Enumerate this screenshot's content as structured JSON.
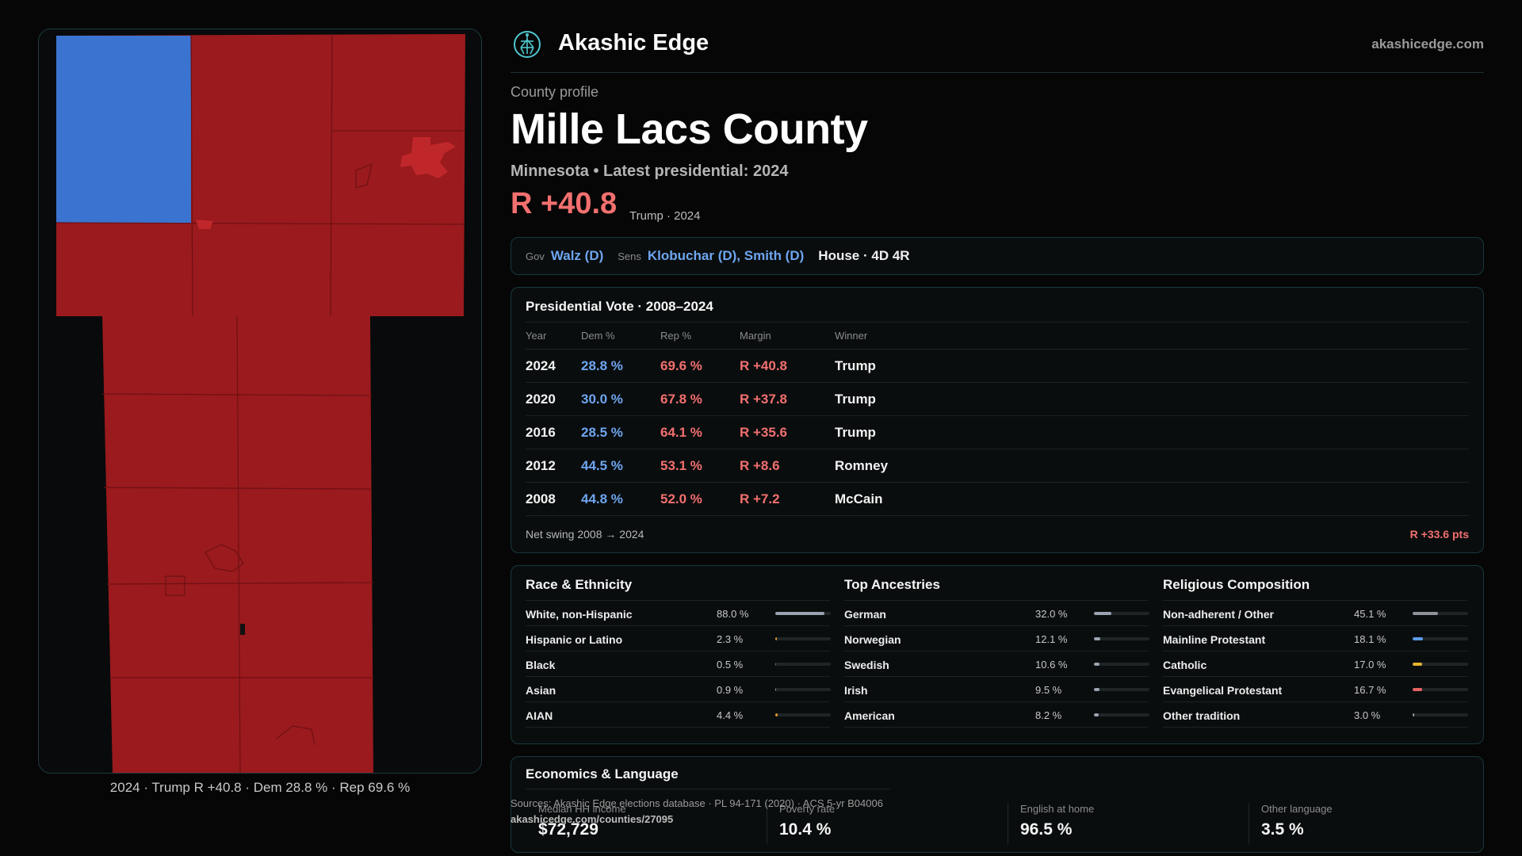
{
  "brand": {
    "name": "Akashic Edge",
    "url": "akashicedge.com",
    "logo_icon": "tree-of-life-icon"
  },
  "county": {
    "eyebrow": "County profile",
    "name": "Mille Lacs County",
    "subtitle": "Minnesota • Latest presidential: 2024",
    "margin": "R +40.8",
    "margin_note": "Trump · 2024"
  },
  "officials": {
    "gov_label": "Gov",
    "gov": "Walz (D)",
    "sens_label": "Sens",
    "sens": "Klobuchar (D), Smith (D)",
    "house": "House · 4D 4R"
  },
  "presidential": {
    "title": "Presidential Vote · 2008–2024",
    "headers": {
      "year": "Year",
      "dem": "Dem %",
      "rep": "Rep %",
      "margin": "Margin",
      "winner": "Winner"
    },
    "rows": [
      {
        "year": "2024",
        "dem": "28.8 %",
        "rep": "69.6 %",
        "margin": "R +40.8",
        "winner": "Trump"
      },
      {
        "year": "2020",
        "dem": "30.0 %",
        "rep": "67.8 %",
        "margin": "R +37.8",
        "winner": "Trump"
      },
      {
        "year": "2016",
        "dem": "28.5 %",
        "rep": "64.1 %",
        "margin": "R +35.6",
        "winner": "Trump"
      },
      {
        "year": "2012",
        "dem": "44.5 %",
        "rep": "53.1 %",
        "margin": "R +8.6",
        "winner": "Romney"
      },
      {
        "year": "2008",
        "dem": "44.8 %",
        "rep": "52.0 %",
        "margin": "R +7.2",
        "winner": "McCain"
      }
    ],
    "swing_label": "Net swing 2008 → 2024",
    "swing_value": "R +33.6 pts"
  },
  "race": {
    "title": "Race & Ethnicity",
    "items": [
      {
        "label": "White, non-Hispanic",
        "value": "88.0 %",
        "pct": 88.0,
        "color": "#9aa4b1"
      },
      {
        "label": "Hispanic or Latino",
        "value": "2.3 %",
        "pct": 2.3,
        "color": "#e0962f"
      },
      {
        "label": "Black",
        "value": "0.5 %",
        "pct": 0.5,
        "color": "#6e6e6e"
      },
      {
        "label": "Asian",
        "value": "0.9 %",
        "pct": 0.9,
        "color": "#9aa4b1"
      },
      {
        "label": "AIAN",
        "value": "4.4 %",
        "pct": 4.4,
        "color": "#e0962f"
      }
    ]
  },
  "ancestry": {
    "title": "Top Ancestries",
    "items": [
      {
        "label": "German",
        "value": "32.0 %",
        "pct": 32.0,
        "color": "#9aa4b1"
      },
      {
        "label": "Norwegian",
        "value": "12.1 %",
        "pct": 12.1,
        "color": "#9aa4b1"
      },
      {
        "label": "Swedish",
        "value": "10.6 %",
        "pct": 10.6,
        "color": "#9aa4b1"
      },
      {
        "label": "Irish",
        "value": "9.5 %",
        "pct": 9.5,
        "color": "#9aa4b1"
      },
      {
        "label": "American",
        "value": "8.2 %",
        "pct": 8.2,
        "color": "#9aa4b1"
      }
    ]
  },
  "religion": {
    "title": "Religious Composition",
    "items": [
      {
        "label": "Non-adherent / Other",
        "value": "45.1 %",
        "pct": 45.1,
        "color": "#8d949c"
      },
      {
        "label": "Mainline Protestant",
        "value": "18.1 %",
        "pct": 18.1,
        "color": "#5b9be8"
      },
      {
        "label": "Catholic",
        "value": "17.0 %",
        "pct": 17.0,
        "color": "#e5b42e"
      },
      {
        "label": "Evangelical Protestant",
        "value": "16.7 %",
        "pct": 16.7,
        "color": "#e86363"
      },
      {
        "label": "Other tradition",
        "value": "3.0 %",
        "pct": 3.0,
        "color": "#9aa4b1"
      }
    ]
  },
  "economics": {
    "title": "Economics & Language",
    "stats": [
      {
        "label": "Median HH income",
        "value": "$72,729"
      },
      {
        "label": "Poverty rate",
        "value": "10.4 %"
      },
      {
        "label": "English at home",
        "value": "96.5 %"
      },
      {
        "label": "Other language",
        "value": "3.5 %"
      }
    ]
  },
  "sources": {
    "text": "Sources: Akashic Edge elections database · PL 94-171 (2020) · ACS 5-yr B04006",
    "url": "akashicedge.com/counties/27095"
  },
  "map": {
    "caption": "2024 · Trump R +40.8 · Dem 28.8 % · Rep 69.6 %",
    "rep_color": "#9a1a1d",
    "dem_color": "#3a74d0"
  }
}
